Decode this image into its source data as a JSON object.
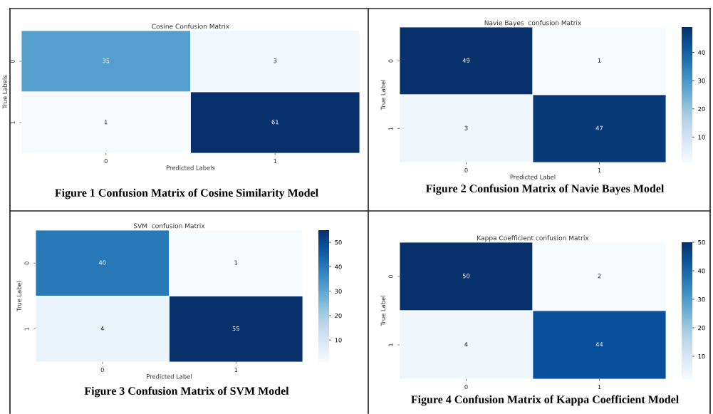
{
  "chart_data": [
    {
      "type": "heatmap",
      "title": "Cosine Confusion Matrix",
      "xlabel": "Predicted Labels",
      "ylabel": "True Labels",
      "categories": [
        "0",
        "1"
      ],
      "y_categories": [
        "0",
        "1"
      ],
      "cells": [
        [
          35,
          3
        ],
        [
          1,
          61
        ]
      ],
      "data_labels": true,
      "annotations": [
        "Figure 1 Confusion Matrix of Cosine Similarity Model"
      ]
    },
    {
      "type": "heatmap",
      "title": "Navie Bayes  confusion Matrix",
      "xlabel": "Predicted Label",
      "ylabel": "True Label",
      "categories": [
        "0",
        "1"
      ],
      "y_categories": [
        "0",
        "1"
      ],
      "cells": [
        [
          49,
          1
        ],
        [
          3,
          47
        ]
      ],
      "clim": [
        1,
        49
      ],
      "cticks": [
        10,
        20,
        30,
        40
      ],
      "data_labels": true,
      "annotations": [
        "Figure 2 Confusion Matrix of Navie Bayes Model"
      ]
    },
    {
      "type": "heatmap",
      "title": "SVM  confusion Matrix",
      "xlabel": "Predicted Label",
      "ylabel": "True Label",
      "categories": [
        "0",
        "1"
      ],
      "y_categories": [
        "0",
        "1"
      ],
      "cells": [
        [
          40,
          1
        ],
        [
          4,
          55
        ]
      ],
      "clim": [
        1,
        55
      ],
      "cticks": [
        10,
        20,
        30,
        40,
        50
      ],
      "data_labels": true,
      "annotations": [
        "Figure 3 Confusion Matrix of SVM Model"
      ]
    },
    {
      "type": "heatmap",
      "title": "Kappa Coefficient confusion Matrix",
      "ylabel": "True Label",
      "categories": [
        "0",
        "1"
      ],
      "y_categories": [
        "0",
        "1"
      ],
      "cells": [
        [
          50,
          2
        ],
        [
          4,
          44
        ]
      ],
      "clim": [
        2,
        50
      ],
      "cticks": [
        10,
        20,
        30,
        40,
        50
      ],
      "data_labels": true,
      "annotations": [
        "Figure 4 Confusion Matrix of Kappa Coefficient Model"
      ]
    }
  ]
}
